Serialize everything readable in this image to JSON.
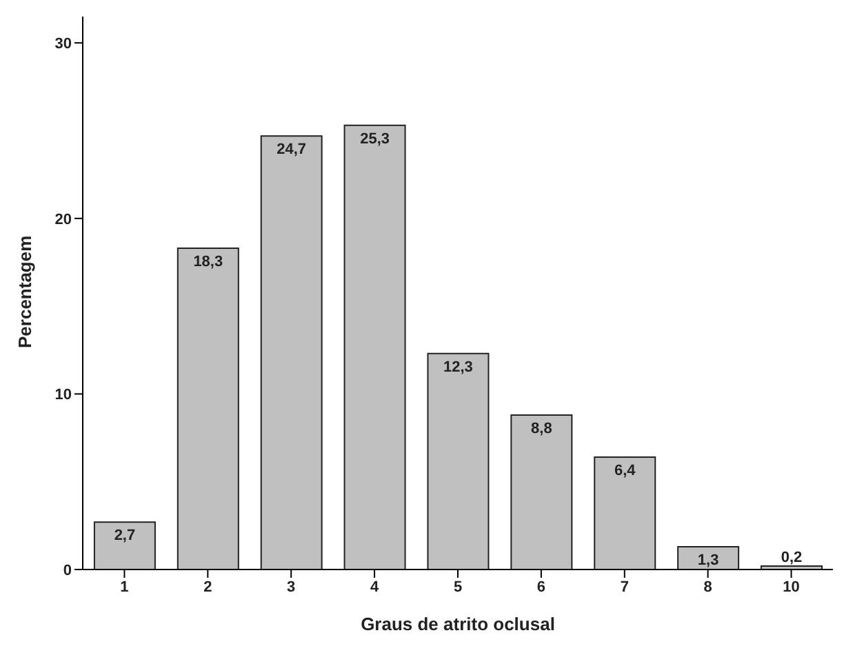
{
  "chart_data": {
    "type": "bar",
    "xlabel": "Graus de atrito oclusal",
    "ylabel": "Percentagem",
    "categories": [
      "1",
      "2",
      "3",
      "4",
      "5",
      "6",
      "7",
      "8",
      "10"
    ],
    "values": [
      2.7,
      18.3,
      24.7,
      25.3,
      12.3,
      8.8,
      6.4,
      1.3,
      0.2
    ],
    "value_labels": [
      "2,7",
      "18,3",
      "24,7",
      "25,3",
      "12,3",
      "8,8",
      "6,4",
      "1,3",
      "0,2"
    ],
    "color": "#c0c0c0",
    "ylim": [
      0,
      31.5
    ],
    "yticks": [
      0,
      10,
      20,
      30
    ],
    "grid": false,
    "legend": false
  }
}
